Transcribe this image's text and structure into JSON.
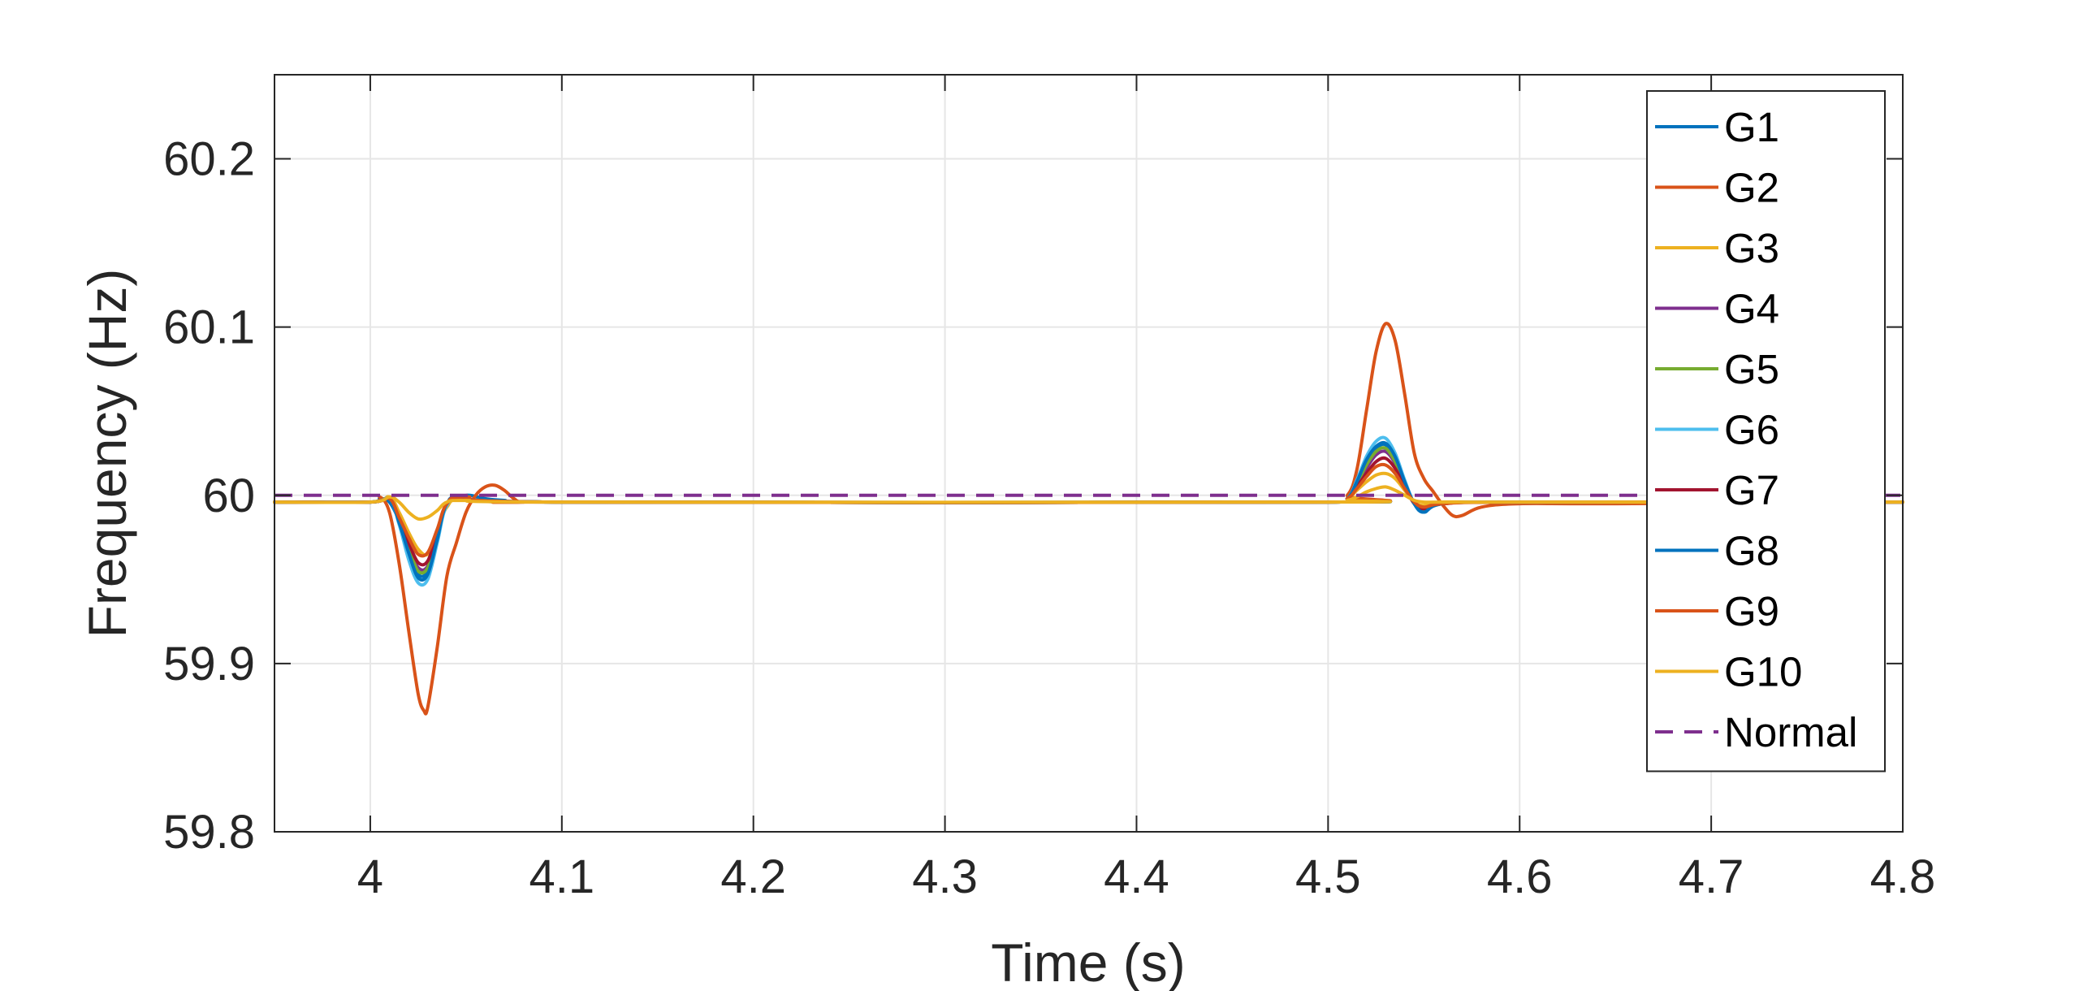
{
  "chart_data": {
    "type": "line",
    "title": "",
    "xlabel": "Time (s)",
    "ylabel": "Frequency (Hz)",
    "xlim": [
      3.95,
      4.8
    ],
    "ylim": [
      59.8,
      60.25
    ],
    "xticks": [
      "4",
      "4.1",
      "4.2",
      "4.3",
      "4.4",
      "4.5",
      "4.6",
      "4.7",
      "4.8"
    ],
    "yticks": [
      "59.8",
      "59.9",
      "60",
      "60.1",
      "60.2"
    ],
    "grid": true,
    "legend_position": "top-right",
    "series": [
      {
        "name": "G1",
        "color": "#0072BD",
        "dash": "solid",
        "x": [
          3.95,
          4.0,
          4.005,
          4.01,
          4.015,
          4.02,
          4.025,
          4.03,
          4.035,
          4.04,
          4.05,
          4.06,
          4.07,
          4.1,
          4.5,
          4.51,
          4.515,
          4.52,
          4.525,
          4.53,
          4.535,
          4.54,
          4.545,
          4.55,
          4.56,
          4.6,
          4.8
        ],
        "y": [
          59.996,
          59.996,
          59.998,
          59.996,
          59.985,
          59.968,
          59.953,
          59.955,
          59.975,
          59.995,
          60.0,
          59.998,
          59.997,
          59.996,
          59.996,
          59.998,
          60.008,
          60.02,
          60.028,
          60.03,
          60.022,
          60.008,
          59.995,
          59.99,
          59.995,
          59.996,
          59.996
        ]
      },
      {
        "name": "G2",
        "color": "#D95319",
        "dash": "solid",
        "x": [
          3.95,
          4.0,
          4.005,
          4.01,
          4.015,
          4.02,
          4.025,
          4.028,
          4.03,
          4.035,
          4.04,
          4.045,
          4.05,
          4.055,
          4.06,
          4.065,
          4.07,
          4.075,
          4.08,
          4.1,
          4.5,
          4.51,
          4.515,
          4.52,
          4.525,
          4.53,
          4.535,
          4.54,
          4.545,
          4.55,
          4.555,
          4.56,
          4.565,
          4.57,
          4.58,
          4.6,
          4.65,
          4.8
        ],
        "y": [
          59.996,
          59.996,
          59.999,
          59.99,
          59.96,
          59.92,
          59.882,
          59.872,
          59.874,
          59.91,
          59.952,
          59.972,
          59.99,
          60.0,
          60.005,
          60.006,
          60.003,
          59.998,
          59.996,
          59.996,
          59.996,
          60.0,
          60.015,
          60.05,
          60.085,
          60.102,
          60.092,
          60.06,
          60.025,
          60.01,
          60.002,
          59.994,
          59.988,
          59.988,
          59.993,
          59.995,
          59.995,
          59.996
        ]
      },
      {
        "name": "G3",
        "color": "#EDB120",
        "dash": "solid",
        "x": [
          3.95,
          4.0,
          4.01,
          4.015,
          4.02,
          4.025,
          4.03,
          4.035,
          4.04,
          4.05,
          4.1,
          4.5,
          4.51,
          4.515,
          4.52,
          4.525,
          4.53,
          4.535,
          4.54,
          4.545,
          4.55,
          4.56,
          4.6,
          4.8
        ],
        "y": [
          59.996,
          59.996,
          59.999,
          59.99,
          59.978,
          59.968,
          59.965,
          59.978,
          59.993,
          59.998,
          59.996,
          59.996,
          59.998,
          60.003,
          60.008,
          60.012,
          60.013,
          60.01,
          60.003,
          59.996,
          59.994,
          59.996,
          59.996,
          59.996
        ]
      },
      {
        "name": "G4",
        "color": "#7E2F8E",
        "dash": "solid",
        "x": [
          3.95,
          4.0,
          4.01,
          4.015,
          4.02,
          4.025,
          4.03,
          4.035,
          4.04,
          4.05,
          4.1,
          4.5,
          4.51,
          4.515,
          4.52,
          4.525,
          4.53,
          4.535,
          4.54,
          4.545,
          4.55,
          4.56,
          4.6,
          4.8
        ],
        "y": [
          59.996,
          59.996,
          59.998,
          59.985,
          59.97,
          59.957,
          59.958,
          59.976,
          59.995,
          59.999,
          59.996,
          59.996,
          59.998,
          60.006,
          60.016,
          60.024,
          60.026,
          60.019,
          60.006,
          59.995,
          59.991,
          59.995,
          59.996,
          59.996
        ]
      },
      {
        "name": "G5",
        "color": "#77AC30",
        "dash": "solid",
        "x": [
          3.95,
          4.0,
          4.01,
          4.015,
          4.02,
          4.025,
          4.03,
          4.035,
          4.04,
          4.05,
          4.1,
          4.5,
          4.51,
          4.515,
          4.52,
          4.525,
          4.53,
          4.535,
          4.54,
          4.545,
          4.55,
          4.56,
          4.6,
          4.8
        ],
        "y": [
          59.996,
          59.996,
          59.998,
          59.985,
          59.969,
          59.955,
          59.957,
          59.976,
          59.995,
          59.999,
          59.996,
          59.996,
          59.998,
          60.007,
          60.018,
          60.026,
          60.028,
          60.02,
          60.007,
          59.995,
          59.991,
          59.995,
          59.996,
          59.996
        ]
      },
      {
        "name": "G6",
        "color": "#4DBEEE",
        "dash": "solid",
        "x": [
          3.95,
          4.0,
          4.01,
          4.015,
          4.02,
          4.025,
          4.03,
          4.035,
          4.04,
          4.05,
          4.1,
          4.5,
          4.51,
          4.515,
          4.52,
          4.525,
          4.53,
          4.535,
          4.54,
          4.545,
          4.55,
          4.56,
          4.6,
          4.8
        ],
        "y": [
          59.996,
          59.996,
          59.998,
          59.983,
          59.962,
          59.948,
          59.95,
          59.972,
          59.994,
          59.999,
          59.996,
          59.996,
          59.998,
          60.009,
          60.023,
          60.032,
          60.034,
          60.025,
          60.009,
          59.995,
          59.99,
          59.995,
          59.996,
          59.996
        ]
      },
      {
        "name": "G7",
        "color": "#A2142F",
        "dash": "solid",
        "x": [
          3.95,
          4.0,
          4.01,
          4.015,
          4.02,
          4.025,
          4.03,
          4.035,
          4.04,
          4.05,
          4.1,
          4.5,
          4.51,
          4.515,
          4.52,
          4.525,
          4.53,
          4.535,
          4.54,
          4.545,
          4.55,
          4.56,
          4.6,
          4.8
        ],
        "y": [
          59.996,
          59.996,
          59.998,
          59.986,
          59.972,
          59.96,
          59.961,
          59.978,
          59.995,
          59.999,
          59.996,
          59.996,
          59.998,
          60.005,
          60.013,
          60.02,
          60.022,
          60.016,
          60.005,
          59.995,
          59.992,
          59.995,
          59.996,
          59.996
        ]
      },
      {
        "name": "G8",
        "color": "#0072BD",
        "dash": "solid",
        "x": [
          3.95,
          4.0,
          4.01,
          4.015,
          4.02,
          4.025,
          4.03,
          4.035,
          4.04,
          4.05,
          4.1,
          4.5,
          4.51,
          4.515,
          4.52,
          4.525,
          4.53,
          4.535,
          4.54,
          4.545,
          4.55,
          4.56,
          4.6,
          4.8
        ],
        "y": [
          59.996,
          59.996,
          59.998,
          59.984,
          59.966,
          59.951,
          59.953,
          59.974,
          59.995,
          59.999,
          59.996,
          59.996,
          59.998,
          60.008,
          60.021,
          60.029,
          60.031,
          60.023,
          60.008,
          59.995,
          59.99,
          59.995,
          59.996,
          59.996
        ]
      },
      {
        "name": "G9",
        "color": "#D95319",
        "dash": "solid",
        "x": [
          3.95,
          4.0,
          4.01,
          4.015,
          4.02,
          4.025,
          4.03,
          4.035,
          4.04,
          4.05,
          4.1,
          4.5,
          4.51,
          4.515,
          4.52,
          4.525,
          4.53,
          4.535,
          4.54,
          4.545,
          4.55,
          4.56,
          4.6,
          4.8
        ],
        "y": [
          59.996,
          59.996,
          59.998,
          59.987,
          59.975,
          59.965,
          59.966,
          59.98,
          59.995,
          59.999,
          59.996,
          59.996,
          59.998,
          60.004,
          60.011,
          60.017,
          60.018,
          60.013,
          60.004,
          59.996,
          59.993,
          59.995,
          59.996,
          59.996
        ]
      },
      {
        "name": "G10",
        "color": "#EDB120",
        "dash": "solid",
        "x": [
          3.95,
          4.0,
          4.01,
          4.015,
          4.02,
          4.025,
          4.03,
          4.035,
          4.04,
          4.05,
          4.1,
          4.5,
          4.51,
          4.515,
          4.52,
          4.525,
          4.53,
          4.535,
          4.54,
          4.545,
          4.55,
          4.56,
          4.6,
          4.8
        ],
        "y": [
          59.996,
          59.996,
          59.999,
          59.996,
          59.99,
          59.986,
          59.987,
          59.991,
          59.996,
          59.997,
          59.996,
          59.996,
          59.997,
          59.999,
          60.002,
          60.004,
          60.005,
          60.003,
          60.0,
          59.997,
          59.996,
          59.996,
          59.996,
          59.996
        ]
      },
      {
        "name": "Normal",
        "color": "#7E2F8E",
        "dash": "dashed",
        "x": [
          3.95,
          4.8
        ],
        "y": [
          60.0,
          60.0
        ]
      }
    ]
  }
}
